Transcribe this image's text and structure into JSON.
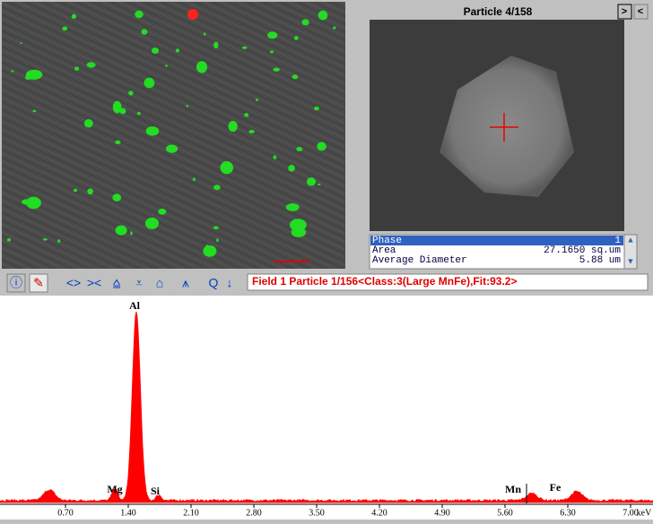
{
  "particle_panel": {
    "title": "Particle 4/158",
    "rows": [
      [
        "Phase",
        "1"
      ],
      [
        "Area",
        "27.1650 sq.um"
      ],
      [
        "Average Diameter",
        "5.88 um"
      ]
    ]
  },
  "toolbar": {
    "status": "Field 1 Particle 1/156<Class:3(Large MnFe),Fit:93.2>"
  },
  "spectrum": {
    "peak_labels": [
      "Al",
      "Mg",
      "Si",
      "Mn",
      "Fe"
    ],
    "x_ticks": [
      "0.70",
      "1.40",
      "2.10",
      "2.80",
      "3.50",
      "4.20",
      "4.90",
      "5.60",
      "6.30",
      "7.00"
    ],
    "x_unit": "keV"
  }
}
